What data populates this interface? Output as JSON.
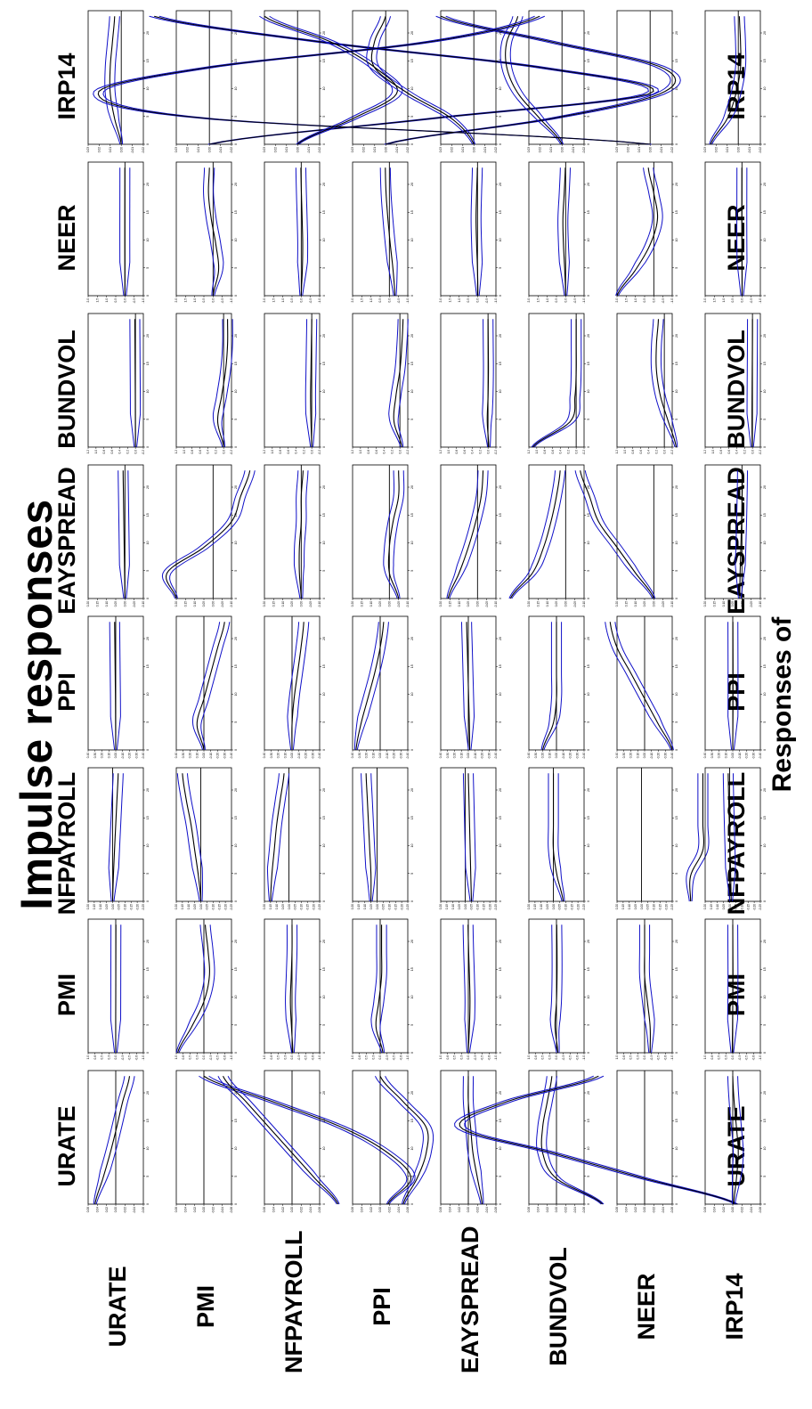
{
  "title": "Impulse responses",
  "response_label": "Responses of",
  "colors": {
    "median": "#000000",
    "band": "#1010c8",
    "axis": "#000000",
    "zero": "#000000"
  },
  "variables": [
    "URATE",
    "PMI",
    "NFPAYROLL",
    "PPI",
    "EAYSPREAD",
    "BUNDVOL",
    "NEER",
    "IRP14"
  ],
  "chart_data": {
    "type": "line",
    "layout": "8x8 grid of impulse response panels; rows = shocks, columns = responses",
    "x": {
      "ticks": [
        0,
        5,
        10,
        15,
        20
      ],
      "range": [
        0,
        24
      ]
    },
    "response_ranges": {
      "URATE": [
        -0.06,
        0.06
      ],
      "PMI": [
        -1.0,
        1.0
      ],
      "NFPAYROLL": [
        -0.25,
        0.2
      ],
      "PPI": [
        -0.4,
        0.4
      ],
      "EAYSPREAD": [
        -0.1,
        0.2
      ],
      "BUNDVOL": [
        -0.2,
        1.2
      ],
      "NEER": [
        -1.0,
        2.0
      ],
      "IRP14": [
        -0.02,
        0.03
      ]
    },
    "response_ticks": {
      "URATE": [
        -0.06,
        -0.04,
        -0.02,
        0.0,
        0.02,
        0.04,
        0.06
      ],
      "PMI": [
        -1.0,
        -0.75,
        -0.5,
        -0.25,
        0.0,
        0.25,
        0.5,
        0.75,
        1.0
      ],
      "NFPAYROLL": [
        -0.25,
        -0.2,
        -0.15,
        -0.1,
        -0.05,
        0.0,
        0.05,
        0.1,
        0.15,
        0.2
      ],
      "PPI": [
        -0.4,
        -0.3,
        -0.2,
        -0.1,
        0.0,
        0.1,
        0.2,
        0.3,
        0.4
      ],
      "EAYSPREAD": [
        -0.1,
        -0.05,
        0.0,
        0.05,
        0.1,
        0.15,
        0.2
      ],
      "BUNDVOL": [
        -0.2,
        0.0,
        0.2,
        0.4,
        0.6,
        0.8,
        1.0,
        1.2
      ],
      "NEER": [
        -1.0,
        -0.5,
        0.0,
        0.5,
        1.0,
        1.5,
        2.0
      ],
      "IRP14": [
        -0.02,
        -0.01,
        0.0,
        0.01,
        0.02,
        0.03
      ]
    },
    "shapes": [
      [
        [
          0.045,
          0.028,
          0.012,
          -0.002,
          -0.015,
          -0.03
        ],
        [
          0.0,
          0.002,
          0.0,
          -0.002,
          -0.004,
          -0.006
        ],
        [
          0.0,
          -0.006,
          -0.015,
          -0.025,
          -0.035,
          -0.045
        ],
        [
          0.0,
          0.002,
          0.004,
          0.008,
          0.012,
          0.016
        ],
        [
          0.0,
          0.002,
          0.004,
          0.006,
          0.008,
          0.01
        ],
        [
          0.0,
          0.002,
          0.004,
          0.008,
          0.012,
          0.016
        ],
        [
          0.0,
          0.004,
          0.008,
          0.008,
          0.006,
          0.004
        ],
        [
          0.0,
          0.006,
          0.01,
          0.01,
          0.008,
          0.006
        ]
      ],
      [
        [
          -0.4,
          -0.45,
          -0.4,
          -0.3,
          -0.15,
          0.0
        ],
        [
          0.95,
          0.45,
          0.0,
          -0.2,
          -0.15,
          -0.05
        ],
        [
          0.0,
          0.02,
          0.05,
          0.08,
          0.12,
          0.15
        ],
        [
          0.0,
          0.1,
          0.0,
          -0.1,
          -0.2,
          -0.3
        ],
        [
          0.2,
          0.25,
          0.05,
          -0.1,
          -0.15,
          -0.2
        ],
        [
          0.0,
          0.15,
          0.05,
          -0.05,
          -0.1,
          -0.1
        ],
        [
          0.0,
          -0.3,
          -0.15,
          0.1,
          0.25,
          0.2
        ],
        [
          0.0,
          -0.2,
          -0.4,
          -0.3,
          -0.1,
          0.05
        ]
      ],
      [
        [
          -0.1,
          -0.05,
          0.0,
          0.05,
          0.1,
          0.15
        ],
        [
          -0.03,
          0.02,
          0.06,
          0.03,
          0.0,
          0.0
        ],
        [
          0.15,
          0.14,
          0.12,
          0.1,
          0.07,
          0.04
        ],
        [
          0.0,
          0.0,
          -0.03,
          -0.08,
          -0.13,
          -0.17
        ],
        [
          0.0,
          0.01,
          0.01,
          0.0,
          0.0,
          -0.01
        ],
        [
          0.0,
          0.02,
          0.03,
          0.02,
          0.01,
          0.0
        ],
        [
          0.0,
          -0.06,
          -0.08,
          -0.05,
          -0.01,
          0.02
        ],
        [
          0.0,
          -0.05,
          -0.09,
          -0.07,
          -0.03,
          0.03
        ]
      ],
      [
        [
          -0.05,
          -0.08,
          -0.1,
          -0.1,
          -0.05,
          0.0
        ],
        [
          -0.1,
          0.15,
          0.05,
          -0.05,
          -0.05,
          -0.05
        ],
        [
          0.05,
          0.05,
          0.06,
          0.07,
          0.08,
          0.09
        ],
        [
          0.35,
          0.28,
          0.18,
          0.08,
          0.0,
          -0.05
        ],
        [
          -0.05,
          0.0,
          0.0,
          -0.02,
          -0.05,
          -0.05
        ],
        [
          -0.05,
          0.15,
          0.1,
          0.0,
          -0.05,
          -0.08
        ],
        [
          -0.3,
          -0.2,
          -0.05,
          0.08,
          0.18,
          0.22
        ],
        [
          0.0,
          -0.15,
          -0.25,
          -0.25,
          -0.15,
          -0.05
        ]
      ],
      [
        [
          -0.03,
          -0.02,
          -0.01,
          -0.005,
          0.0,
          0.0
        ],
        [
          0.0,
          -0.04,
          -0.06,
          -0.04,
          -0.01,
          0.01
        ],
        [
          -0.05,
          -0.045,
          -0.04,
          -0.035,
          -0.03,
          -0.025
        ],
        [
          -0.02,
          -0.015,
          -0.005,
          0.005,
          0.015,
          0.025
        ],
        [
          0.16,
          0.1,
          0.05,
          0.01,
          -0.02,
          -0.03
        ],
        [
          -0.02,
          0.02,
          0.0,
          -0.01,
          -0.005,
          0.0
        ],
        [
          -0.02,
          0.0,
          0.05,
          0.08,
          0.05,
          0.01
        ],
        [
          0.0,
          0.02,
          0.06,
          0.09,
          0.09,
          0.08
        ]
      ],
      [
        [
          -0.1,
          0.0,
          0.03,
          0.03,
          0.02,
          0.01
        ],
        [
          -0.05,
          0.05,
          0.0,
          -0.02,
          -0.02,
          -0.01
        ],
        [
          -0.08,
          -0.03,
          0.0,
          0.0,
          0.0,
          0.0
        ],
        [
          0.2,
          0.05,
          0.0,
          0.0,
          0.0,
          0.0
        ],
        [
          0.3,
          0.18,
          0.12,
          0.08,
          0.05,
          0.03
        ],
        [
          1.1,
          0.15,
          0.03,
          0.0,
          0.0,
          0.0
        ],
        [
          0.0,
          0.05,
          0.12,
          0.15,
          0.08,
          0.02
        ],
        [
          0.0,
          0.02,
          0.04,
          0.05,
          0.05,
          0.04
        ]
      ],
      [
        [
          -0.2,
          0.0,
          0.2,
          0.4,
          0.3,
          0.1
        ],
        [
          -0.2,
          -0.2,
          -0.1,
          0.0,
          0.0,
          0.0
        ],
        [
          -0.4,
          -0.4,
          -0.5,
          -0.5,
          -0.5,
          -0.5
        ],
        [
          -0.4,
          -0.2,
          0.0,
          0.2,
          0.4,
          0.5
        ],
        [
          0.0,
          0.1,
          0.2,
          0.3,
          0.35,
          0.4
        ],
        [
          -0.3,
          -0.1,
          0.1,
          0.2,
          0.2,
          0.15
        ],
        [
          2.0,
          1.0,
          0.2,
          -0.2,
          0.0,
          0.3
        ],
        [
          0.0,
          0.4,
          0.5,
          0.4,
          0.2,
          0.1
        ]
      ],
      [
        [
          -0.002,
          -0.008,
          -0.012,
          -0.008,
          -0.003,
          0.0
        ],
        [
          0.018,
          0.008,
          -0.002,
          -0.008,
          -0.004,
          0.0
        ],
        [
          -0.012,
          -0.008,
          -0.003,
          0.003,
          0.008,
          0.012
        ],
        [
          0.0,
          -0.002,
          -0.004,
          -0.004,
          -0.003,
          -0.002
        ],
        [
          0.012,
          0.01,
          0.006,
          0.002,
          -0.001,
          -0.003
        ],
        [
          0.008,
          0.012,
          0.01,
          0.006,
          0.002,
          0.0
        ],
        [
          -0.012,
          -0.006,
          0.004,
          0.008,
          0.006,
          0.003
        ],
        [
          0.025,
          0.01,
          0.002,
          -0.002,
          -0.002,
          -0.001
        ]
      ]
    ]
  }
}
